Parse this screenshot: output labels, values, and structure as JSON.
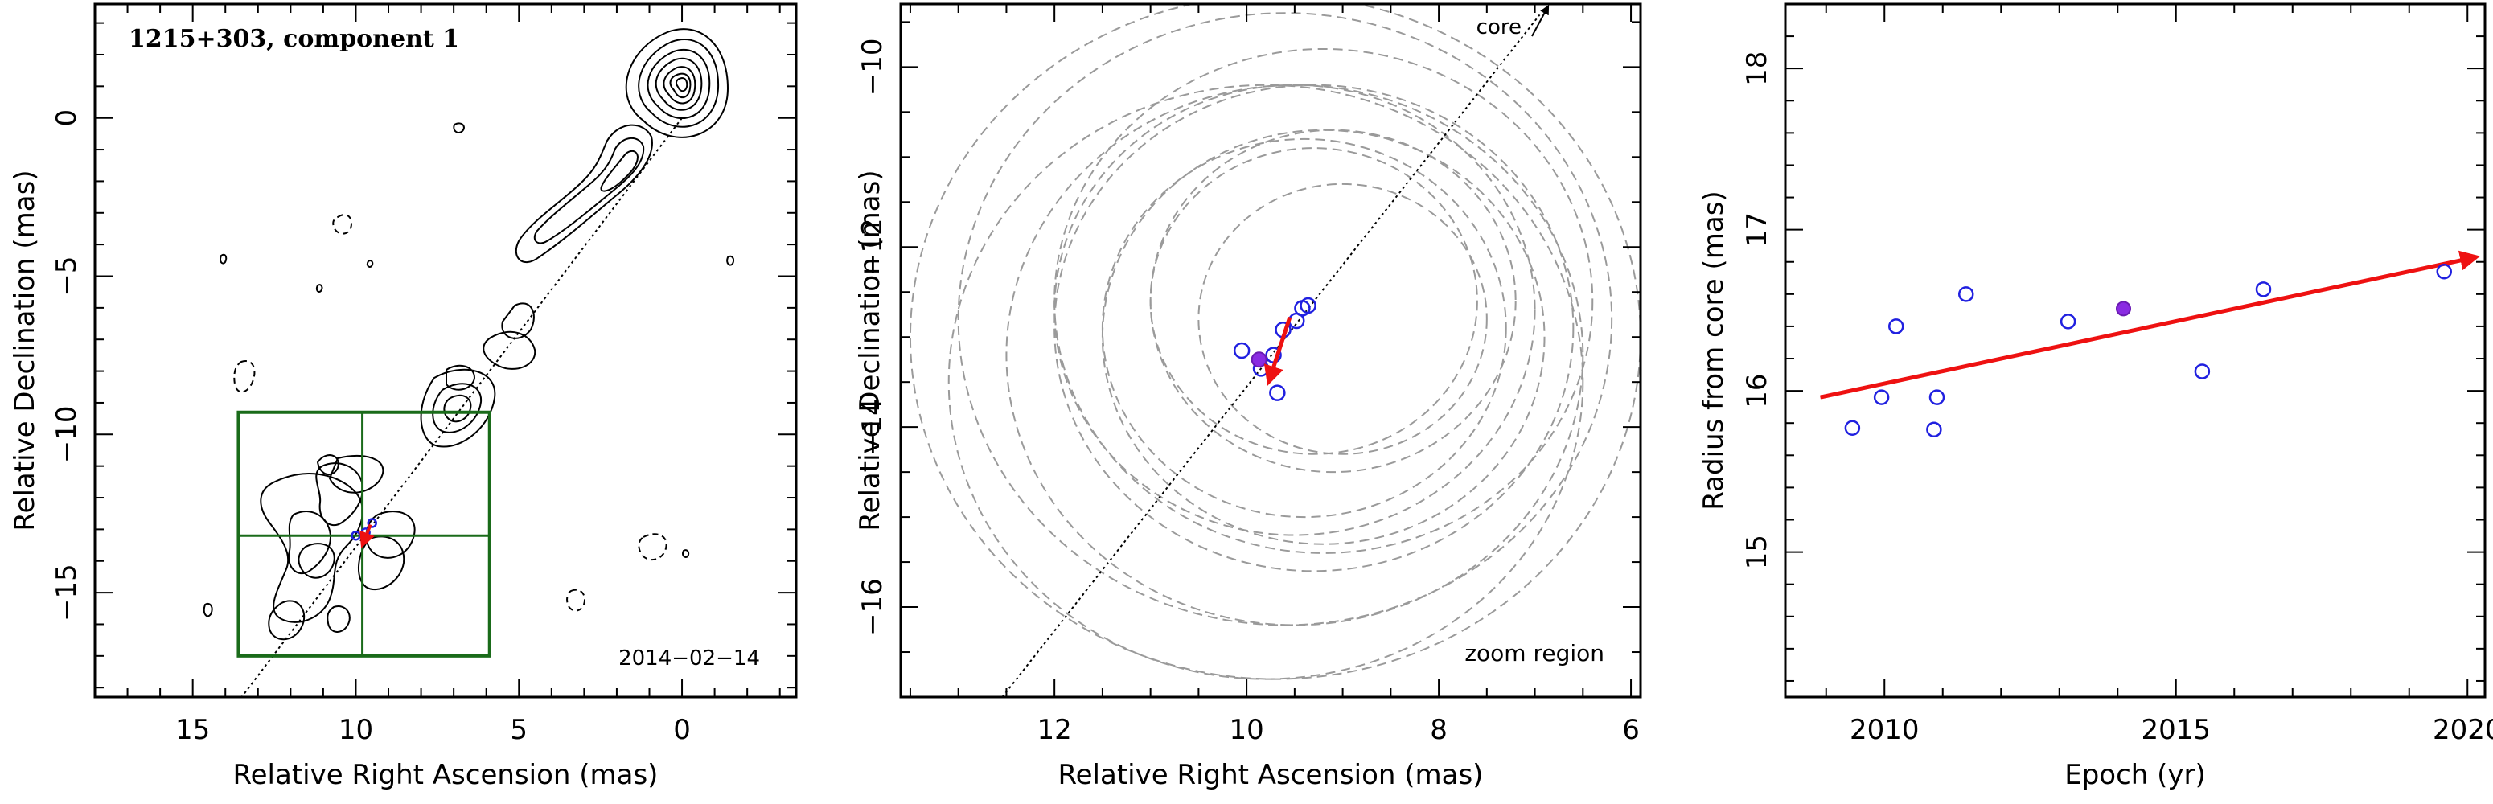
{
  "panel_left": {
    "title": "1215+303, component 1",
    "date": "2014−02−14"
  },
  "panel_middle": {
    "core_label": "core",
    "zoom_label": "zoom region"
  },
  "colors": {
    "contour": "#000000",
    "zoom_box": "#1a6b1a",
    "velocity_arrow": "#ee1111",
    "epoch_points": "#2020e0",
    "reference_epoch": "#8a2be2",
    "uncertainty_circles": "#9a9a9a"
  },
  "chart_data": [
    {
      "type": "contour",
      "title": "1215+303, component 1",
      "annotation": "2014−02−14",
      "xlabel": "Relative Right Ascension (mas)",
      "ylabel": "Relative Declination (mas)",
      "xlim": [
        18,
        -3.5
      ],
      "ylim": [
        -18.3,
        3.6
      ],
      "x_reversed": true,
      "xticks": [
        15,
        10,
        5,
        0
      ],
      "yticks": [
        0,
        -5,
        -10,
        -15
      ],
      "zoom_box": {
        "ra": [
          13.6,
          5.9
        ],
        "dec": [
          -9.3,
          -17.0
        ],
        "center": [
          9.8,
          -13.2
        ]
      },
      "jet_axis": {
        "from": [
          0,
          0
        ],
        "to": [
          13.5,
          -18.3
        ]
      },
      "component_positions": [
        [
          9.5,
          -12.8
        ],
        [
          9.7,
          -13.1
        ],
        [
          10.0,
          -13.2
        ]
      ],
      "velocity_vector": {
        "from": [
          9.55,
          -12.85
        ],
        "to": [
          9.8,
          -13.5
        ]
      }
    },
    {
      "type": "scatter",
      "xlabel": "Relative Right Ascension (mas)",
      "ylabel": "Relative Declination (mas)",
      "xlim": [
        13.6,
        5.9
      ],
      "ylim": [
        -17.0,
        -9.3
      ],
      "x_reversed": true,
      "xticks": [
        12,
        10,
        8,
        6
      ],
      "yticks": [
        -10,
        -12,
        -14,
        -16
      ],
      "annotations": [
        "core",
        "zoom region"
      ],
      "epoch_positions": [
        [
          10.05,
          -13.15
        ],
        [
          9.85,
          -13.35
        ],
        [
          9.72,
          -13.2
        ],
        [
          9.68,
          -13.62
        ],
        [
          9.62,
          -12.92
        ],
        [
          9.48,
          -12.82
        ],
        [
          9.42,
          -12.68
        ],
        [
          9.36,
          -12.65
        ]
      ],
      "reference_position": [
        9.87,
        -13.25
      ],
      "velocity_vector": {
        "from": [
          9.55,
          -12.78
        ],
        "to": [
          9.77,
          -13.5
        ]
      },
      "uncertainty_circles": [
        {
          "center": [
            9.7,
            -13.0
          ],
          "r": 3.8
        },
        {
          "center": [
            9.6,
            -12.8
          ],
          "r": 3.4
        },
        {
          "center": [
            9.8,
            -13.5
          ],
          "r": 3.3
        },
        {
          "center": [
            9.5,
            -13.2
          ],
          "r": 3.0
        },
        {
          "center": [
            9.2,
            -12.6
          ],
          "r": 2.8
        },
        {
          "center": [
            9.3,
            -12.9
          ],
          "r": 2.7
        },
        {
          "center": [
            9.5,
            -12.7
          ],
          "r": 2.5
        },
        {
          "center": [
            9.2,
            -13.0
          ],
          "r": 2.3
        },
        {
          "center": [
            9.4,
            -12.9
          ],
          "r": 2.1
        },
        {
          "center": [
            9.1,
            -12.6
          ],
          "r": 1.9
        },
        {
          "center": [
            9.3,
            -12.6
          ],
          "r": 1.7
        },
        {
          "center": [
            9.0,
            -12.8
          ],
          "r": 1.5
        }
      ]
    },
    {
      "type": "scatter",
      "xlabel": "Epoch (yr)",
      "ylabel": "Radius from core (mas)",
      "xlim": [
        2008.3,
        2020.3
      ],
      "ylim": [
        14.1,
        18.4
      ],
      "xticks": [
        2010,
        2015,
        2020
      ],
      "yticks": [
        15,
        16,
        17,
        18
      ],
      "points": [
        [
          2009.45,
          15.77
        ],
        [
          2009.95,
          15.96
        ],
        [
          2010.2,
          16.4
        ],
        [
          2010.85,
          15.76
        ],
        [
          2010.9,
          15.96
        ],
        [
          2011.4,
          16.6
        ],
        [
          2013.15,
          16.43
        ],
        [
          2015.45,
          16.12
        ],
        [
          2016.5,
          16.63
        ],
        [
          2019.6,
          16.74
        ]
      ],
      "reference_point": [
        2014.1,
        16.51
      ],
      "fit_vector": {
        "from": [
          2008.9,
          15.96
        ],
        "to": [
          2020.15,
          16.83
        ]
      }
    }
  ]
}
